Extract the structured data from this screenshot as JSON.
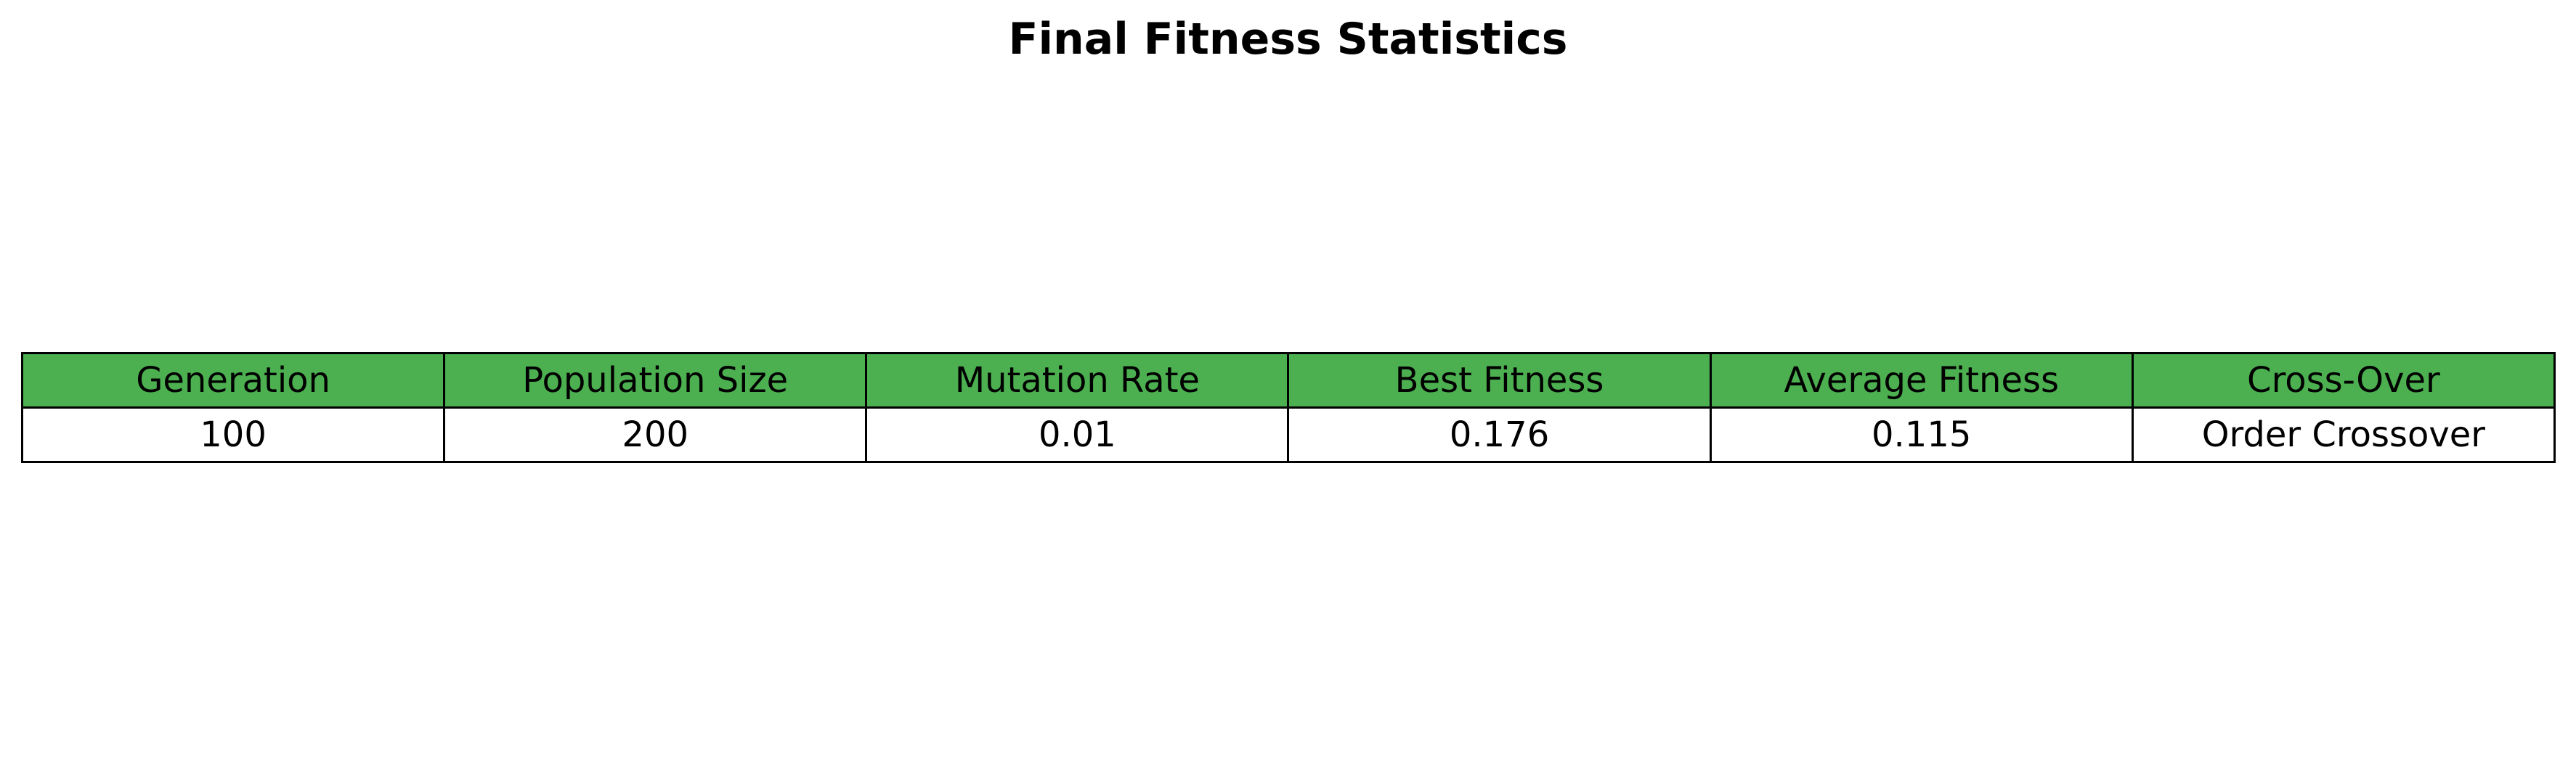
{
  "chart_data": {
    "type": "table",
    "title": "Final Fitness Statistics",
    "columns": [
      "Generation",
      "Population Size",
      "Mutation Rate",
      "Best Fitness",
      "Average Fitness",
      "Cross-Over"
    ],
    "rows": [
      [
        "100",
        "200",
        "0.01",
        "0.176",
        "0.115",
        "Order Crossover"
      ]
    ],
    "header_color": "#4caf50",
    "cell_color": "#ffffff",
    "border_color": "#000000"
  }
}
